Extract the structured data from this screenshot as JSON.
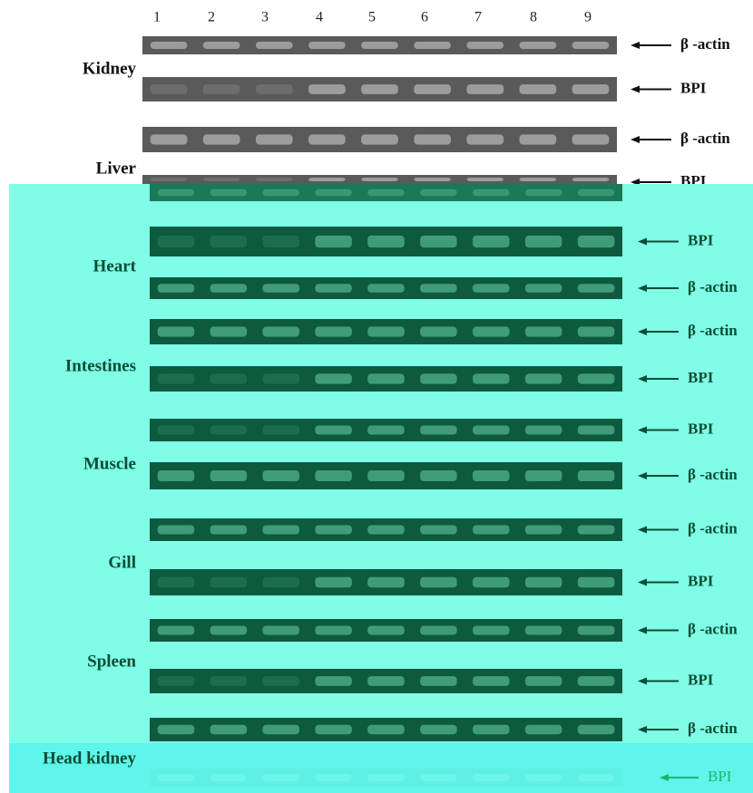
{
  "lanes": [
    "1",
    "2",
    "3",
    "4",
    "5",
    "6",
    "7",
    "8",
    "9"
  ],
  "tissues": [
    {
      "name": "Kidney",
      "bands": [
        "β -actin",
        "BPI"
      ]
    },
    {
      "name": "Liver",
      "bands": [
        "β -actin",
        "BPI"
      ]
    },
    {
      "name": "Heart",
      "bands": [
        "BPI",
        "β -actin"
      ]
    },
    {
      "name": "Intestines",
      "bands": [
        "β -actin",
        "BPI"
      ]
    },
    {
      "name": "Muscle",
      "bands": [
        "BPI",
        "β -actin"
      ]
    },
    {
      "name": "Gill",
      "bands": [
        "β -actin",
        "BPI"
      ]
    },
    {
      "name": "Spleen",
      "bands": [
        "β -actin",
        "BPI"
      ]
    },
    {
      "name": "Head kidney",
      "bands": [
        "β -actin",
        "BPI"
      ]
    }
  ]
}
